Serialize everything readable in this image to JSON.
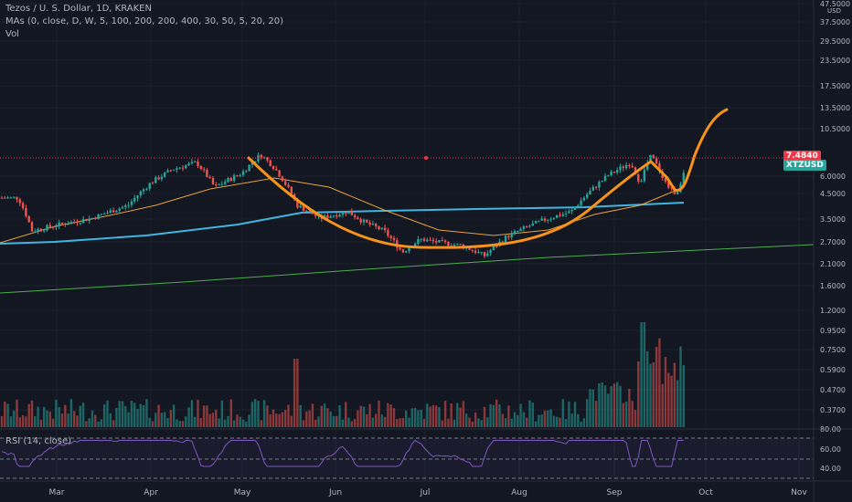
{
  "header": {
    "title": "Tezos / U. S. Dollar, 1D, KRAKEN",
    "ma_label": "MAs (0, close, D, W, 5, 100, 200, 200, 400, 30, 50, 5, 20, 20)",
    "vol_label": "Vol",
    "rsi_label": "RSI (14, close)"
  },
  "price_axis": {
    "currency": "USD",
    "labels": [
      "47.5000",
      "37.5000",
      "29.5000",
      "23.5000",
      "17.5000",
      "13.5000",
      "10.5000",
      "6.0000",
      "4.5000",
      "3.5000",
      "2.7000",
      "2.1000",
      "1.6000",
      "1.2000",
      "0.9500",
      "0.7500",
      "0.5900",
      "0.4700",
      "0.3700"
    ],
    "current_price": "7.4840",
    "symbol_badge": "XTZUSD"
  },
  "rsi_axis": {
    "labels": [
      "80.00",
      "60.00",
      "40.00"
    ]
  },
  "time_axis": {
    "labels": [
      "Mar",
      "Apr",
      "May",
      "Jun",
      "Jul",
      "Aug",
      "Sep",
      "Oct",
      "Nov"
    ]
  },
  "colors": {
    "background": "#131722",
    "up": "#26a69a",
    "down": "#ef5350",
    "ma_blue": "#3fb6e0",
    "ma_green": "#4caf50",
    "ma_orange": "#e9a23b",
    "drawing": "#f7931a",
    "rsi_line": "#7e57c2",
    "price_line": "#f23645"
  },
  "chart_data": {
    "type": "candlestick",
    "symbol": "XTZUSD",
    "exchange": "KRAKEN",
    "interval": "1D",
    "y_scale": "log",
    "ylim": [
      0.33,
      50
    ],
    "current_price": 7.484,
    "moving_averages": [
      {
        "color": "blue",
        "points": [
          [
            "Feb",
            2.85
          ],
          [
            "Mar",
            3.0
          ],
          [
            "Apr",
            3.4
          ],
          [
            "May",
            3.55
          ],
          [
            "Jun",
            4.0
          ],
          [
            "Jul",
            4.0
          ],
          [
            "Aug",
            4.05
          ],
          [
            "Sep",
            4.2
          ],
          [
            "Sep end",
            4.4
          ]
        ]
      },
      {
        "color": "green",
        "points": [
          [
            "Feb",
            1.5
          ],
          [
            "Jun",
            1.9
          ],
          [
            "Aug",
            2.2
          ],
          [
            "Nov",
            2.55
          ]
        ]
      },
      {
        "color": "orange",
        "points": [
          [
            "Feb",
            2.8
          ],
          [
            "Apr",
            5.0
          ],
          [
            "May",
            6.0
          ],
          [
            "Jun",
            4.6
          ],
          [
            "Jul",
            3.2
          ],
          [
            "Aug",
            3.05
          ],
          [
            "Sep",
            4.2
          ],
          [
            "Sep end",
            5.5
          ]
        ]
      }
    ],
    "annotation_cup": {
      "points": [
        [
          "May",
          7.5
        ],
        [
          "Jul",
          2.5
        ],
        [
          "Sep",
          7.0
        ],
        [
          "Oct",
          13.5
        ]
      ]
    },
    "rsi": {
      "range": [
        0,
        100
      ],
      "levels": [
        30,
        70
      ],
      "labels": [
        80,
        60,
        40
      ]
    }
  }
}
